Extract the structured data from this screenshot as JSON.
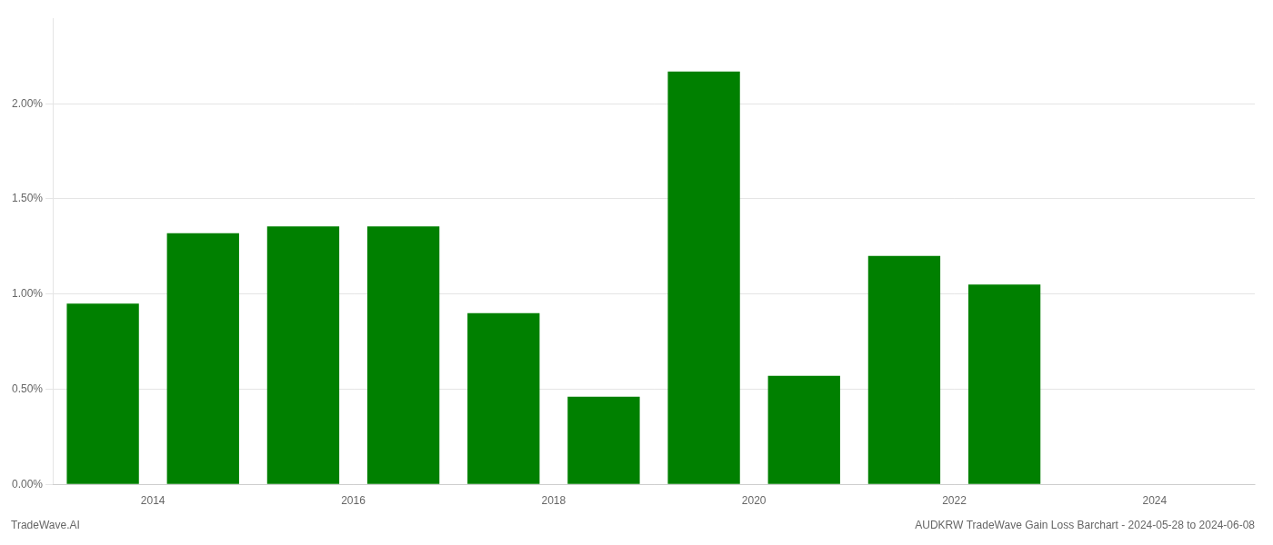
{
  "chart_data": {
    "type": "bar",
    "title": "AUDKRW TradeWave Gain Loss Barchart - 2024-05-28 to 2024-06-08",
    "annotations": [
      "TradeWave.AI"
    ],
    "x": [
      2013.5,
      2014.5,
      2015.5,
      2016.5,
      2017.5,
      2018.5,
      2019.5,
      2020.5,
      2021.5,
      2022.5
    ],
    "values": [
      0.0095,
      0.0132,
      0.01355,
      0.01355,
      0.009,
      0.0046,
      0.0217,
      0.0057,
      0.012,
      0.0105
    ],
    "color": "#008000",
    "xlim": [
      2013.0,
      2025.0
    ],
    "xticks": [
      2014,
      2016,
      2018,
      2020,
      2022,
      2024
    ],
    "ylim": [
      0.0,
      0.0245
    ],
    "yticks": [
      {
        "value": 0.0,
        "label": "0.00%"
      },
      {
        "value": 0.005,
        "label": "0.50%"
      },
      {
        "value": 0.01,
        "label": "1.00%"
      },
      {
        "value": 0.015,
        "label": "1.50%"
      },
      {
        "value": 0.02,
        "label": "2.00%"
      }
    ],
    "grid": "y"
  }
}
